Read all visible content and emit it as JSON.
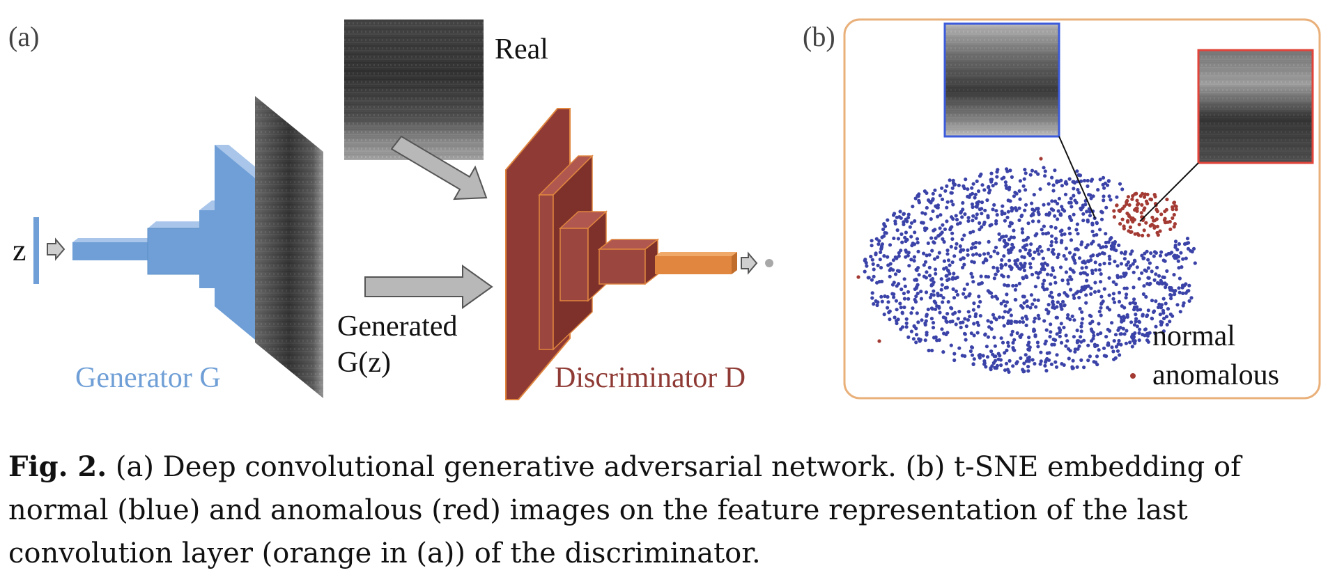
{
  "panel_a": {
    "label": "(a)",
    "input_label": "z",
    "real_label": "Real",
    "generated_label_line1": "Generated",
    "generated_label_line2": "G(z)",
    "generator_label": "Generator G",
    "discriminator_label": "Discriminator D"
  },
  "panel_b": {
    "label": "(b)",
    "legend": [
      {
        "label": "normal",
        "color": "#3b43a8"
      },
      {
        "label": "anomalous",
        "color": "#a33a33"
      }
    ]
  },
  "caption": {
    "fig_label": "Fig. 2.",
    "text": " (a) Deep convolutional generative adversarial network. (b) t-SNE embedding of normal (blue) and anomalous (red) images on the feature representation of the last convolution layer (orange in (a)) of the discriminator."
  },
  "colors": {
    "generator": "#6f9fd6",
    "discriminator": "#8f3a34",
    "orange_layer": "#e0863f",
    "panel_border": "#e9b07a"
  }
}
